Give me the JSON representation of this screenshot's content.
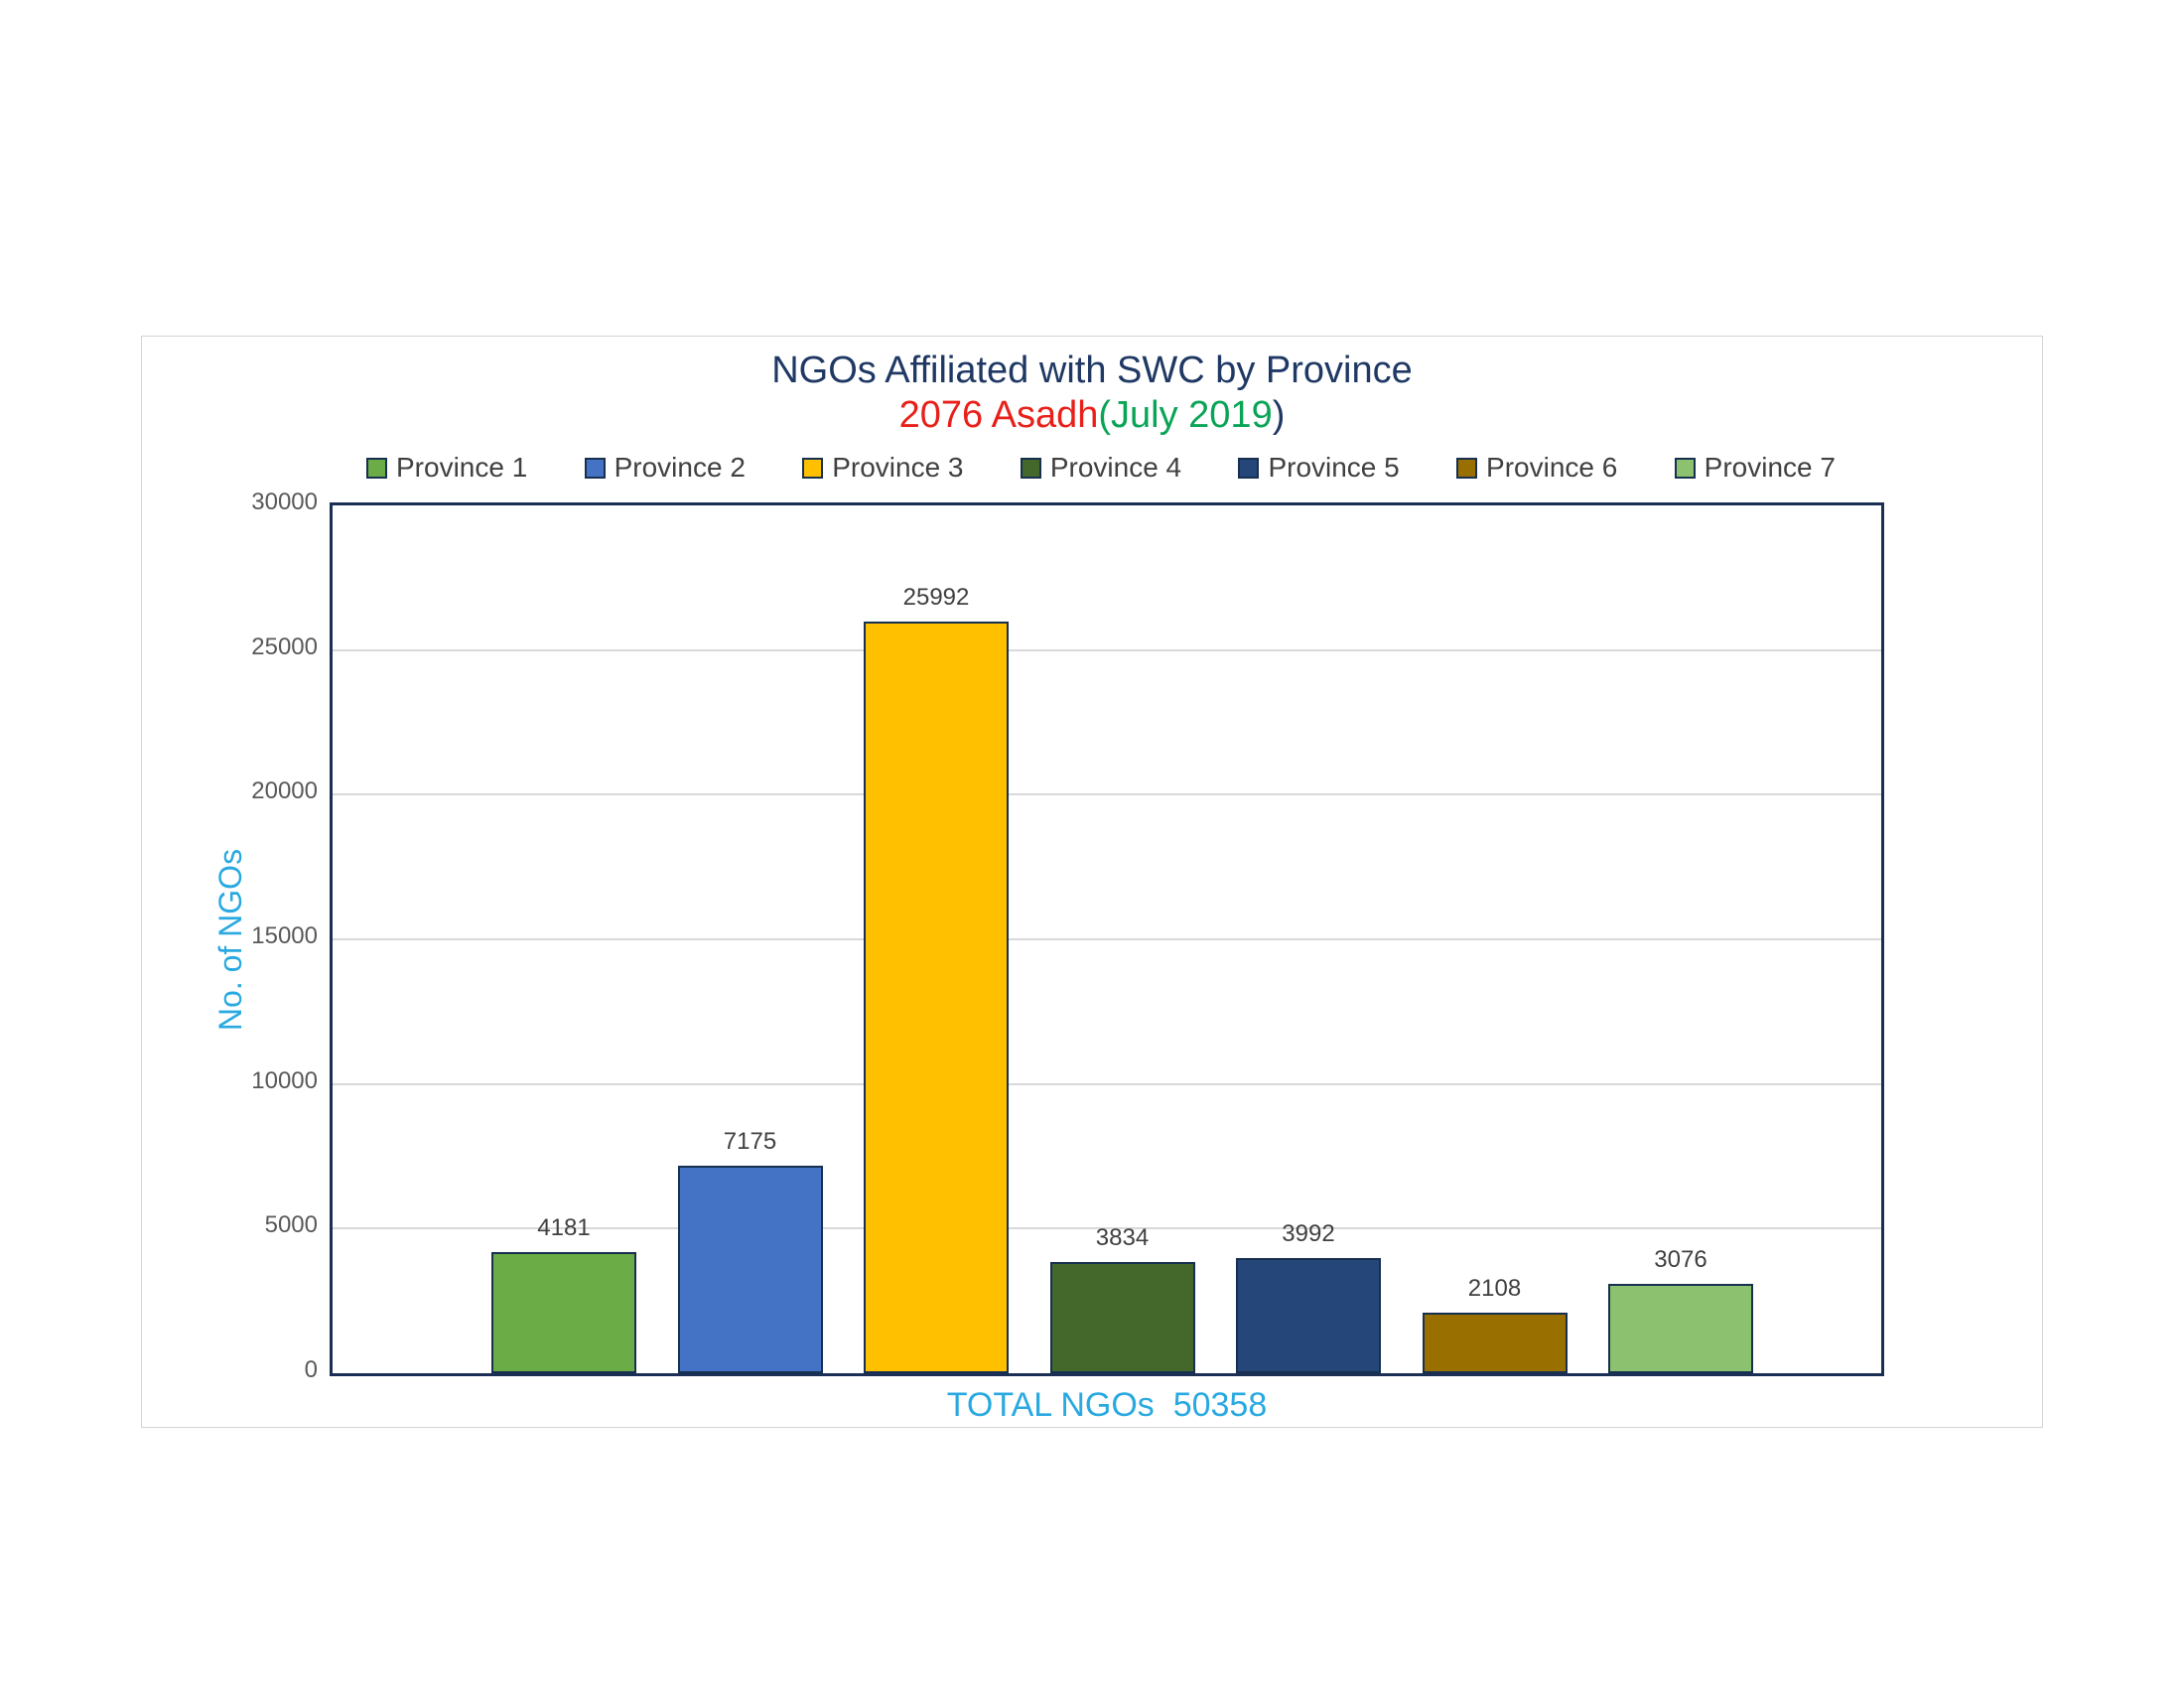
{
  "chart_data": {
    "type": "bar",
    "title": "NGOs Affiliated with SWC by Province",
    "subtitle_parts": [
      {
        "text": "2076 Asadh",
        "color": "#e8201a"
      },
      {
        "text": "(July 2019",
        "color": "#0aa457"
      },
      {
        "text": ")",
        "color": "#1f3864"
      }
    ],
    "categories": [
      "Province 1",
      "Province 2",
      "Province 3",
      "Province 4",
      "Province 5",
      "Province 6",
      "Province 7"
    ],
    "values": [
      4181,
      7175,
      25992,
      3834,
      3992,
      2108,
      3076
    ],
    "bar_colors": [
      "#6bac47",
      "#4473c5",
      "#ffc000",
      "#44682c",
      "#254679",
      "#997000",
      "#8cc26f"
    ],
    "ylabel": "No. of NGOs",
    "yticks": [
      0,
      5000,
      10000,
      15000,
      20000,
      25000,
      30000
    ],
    "ylim": [
      0,
      30000
    ],
    "grid": true,
    "data_labels": true,
    "legend_position": "top",
    "footer_total": "TOTAL NGOs  50358",
    "total_ngos": 50358
  },
  "ui": {
    "title_color": "#1f3864",
    "cyan_accent": "#29a9e0",
    "tick_label_color": "#595959",
    "data_label_color": "#404040",
    "legend_label_color": "#404040",
    "grid_color": "#d9d9d9",
    "axis_border_color": "#1b2f55",
    "bar_border_color": "#17304f",
    "frame_border_color": "#d3d3d3"
  }
}
